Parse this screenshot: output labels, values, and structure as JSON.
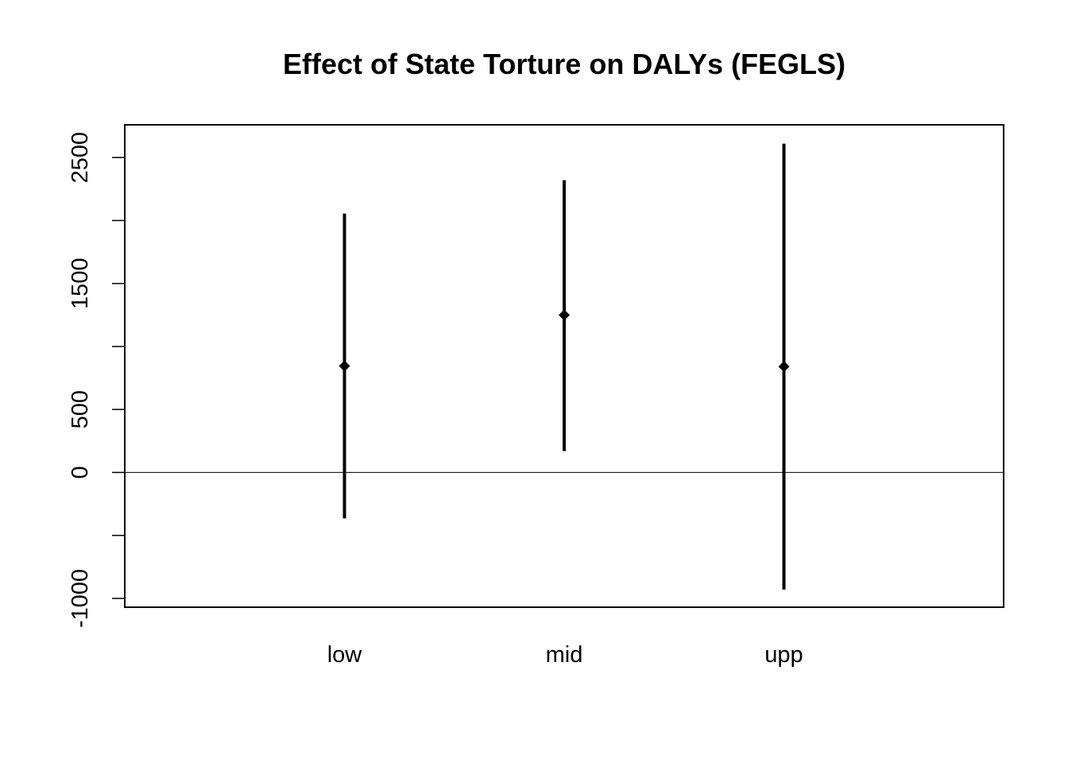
{
  "chart_data": {
    "type": "errorbar",
    "title": "Effect of State Torture on DALYs (FEGLS)",
    "xlabel": "",
    "ylabel": "",
    "categories": [
      "low",
      "mid",
      "upp"
    ],
    "series": [
      {
        "estimate": [
          845,
          1250,
          840
        ],
        "lower": [
          -365,
          170,
          -930
        ],
        "upper": [
          2055,
          2320,
          2610
        ]
      }
    ],
    "ylim": [
      -1070,
      2760
    ],
    "yticks": [
      -1000,
      -500,
      0,
      500,
      1000,
      1500,
      2000,
      2500
    ],
    "ytick_labels": [
      "-1000",
      "",
      "0",
      "500",
      "",
      "1500",
      "",
      "2500"
    ],
    "reference_line": 0,
    "grid": false,
    "legend": "none",
    "colors": {
      "marks": "#000000",
      "background": "#ffffff"
    }
  }
}
